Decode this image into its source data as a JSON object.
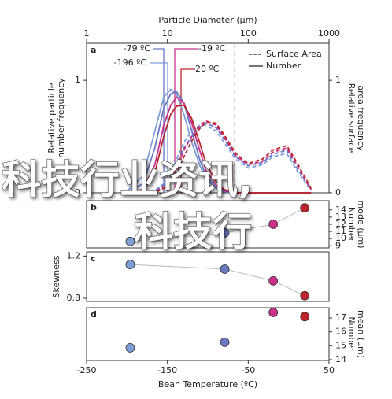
{
  "chart_data": [
    {
      "type": "line",
      "panel_label": "a",
      "xscale": "log",
      "xlabel": "Particle Diameter (μm)",
      "ylabel": [
        "Relative particle",
        "number frequency"
      ],
      "y2label": [
        "Relative surface",
        "area frequency"
      ],
      "x": [
        3,
        5,
        7,
        9,
        11,
        13,
        16,
        20,
        25,
        30,
        40,
        50,
        70,
        100,
        150,
        200,
        300,
        400,
        600
      ],
      "xlim": [
        1,
        1000
      ],
      "xticks": [
        1,
        10,
        100,
        1000
      ],
      "ylim": [
        0,
        1.33
      ],
      "yticks": [
        0,
        1
      ],
      "y2lim": [
        0,
        1.33
      ],
      "y2ticks": [
        0,
        1
      ],
      "reference_line": {
        "value": 68,
        "color": "#e8a0b8"
      },
      "legend": [
        {
          "label": "Surface Area",
          "dashed": true
        },
        {
          "label": "Number",
          "dashed": false
        }
      ],
      "annotations": [
        {
          "text": "-79 ºC",
          "color": "#6a78c4"
        },
        {
          "text": "-196 ºC",
          "color": "#7f9fd8"
        },
        {
          "text": "-19 ºC",
          "color": "#c8308a"
        },
        {
          "text": "20 ºC",
          "color": "#b8262b"
        }
      ],
      "series": [
        {
          "color": "#7f9fd8",
          "dashed": false,
          "values": [
            0,
            0.15,
            0.55,
            0.85,
            0.92,
            0.88,
            0.7,
            0.45,
            0.25,
            0.12,
            0.04,
            0.01,
            0,
            0,
            0,
            0,
            0,
            0,
            0
          ]
        },
        {
          "color": "#6a78c4",
          "dashed": false,
          "values": [
            0,
            0.08,
            0.4,
            0.75,
            0.88,
            0.9,
            0.8,
            0.55,
            0.3,
            0.15,
            0.05,
            0.01,
            0,
            0,
            0,
            0,
            0,
            0,
            0
          ]
        },
        {
          "color": "#c8308a",
          "dashed": false,
          "values": [
            0,
            0.03,
            0.25,
            0.6,
            0.78,
            0.85,
            0.8,
            0.62,
            0.38,
            0.2,
            0.07,
            0.02,
            0,
            0,
            0,
            0,
            0,
            0,
            0
          ]
        },
        {
          "color": "#b8262b",
          "dashed": false,
          "values": [
            0,
            0.02,
            0.18,
            0.5,
            0.7,
            0.77,
            0.78,
            0.66,
            0.45,
            0.26,
            0.1,
            0.03,
            0,
            0,
            0,
            0,
            0,
            0,
            0
          ]
        },
        {
          "color": "#7f9fd8",
          "dashed": true,
          "values": [
            0,
            0,
            0.02,
            0.08,
            0.18,
            0.3,
            0.45,
            0.55,
            0.6,
            0.6,
            0.55,
            0.45,
            0.3,
            0.22,
            0.25,
            0.32,
            0.35,
            0.2,
            0.02
          ]
        },
        {
          "color": "#6a78c4",
          "dashed": true,
          "values": [
            0,
            0,
            0.02,
            0.07,
            0.15,
            0.26,
            0.4,
            0.5,
            0.58,
            0.62,
            0.58,
            0.48,
            0.32,
            0.24,
            0.27,
            0.34,
            0.38,
            0.22,
            0.03
          ]
        },
        {
          "color": "#c8308a",
          "dashed": true,
          "values": [
            0,
            0,
            0.01,
            0.05,
            0.12,
            0.22,
            0.38,
            0.5,
            0.6,
            0.64,
            0.6,
            0.5,
            0.33,
            0.25,
            0.28,
            0.36,
            0.4,
            0.25,
            0.03
          ]
        },
        {
          "color": "#b8262b",
          "dashed": true,
          "values": [
            0,
            0,
            0,
            0.04,
            0.1,
            0.18,
            0.32,
            0.46,
            0.57,
            0.63,
            0.62,
            0.52,
            0.35,
            0.26,
            0.3,
            0.38,
            0.42,
            0.27,
            0.04
          ]
        }
      ]
    },
    {
      "type": "scatter",
      "panel_label": "b",
      "y2label": [
        "Number",
        "mode (μm)"
      ],
      "yaxis_side": "right",
      "connect": true,
      "x": [
        -196,
        -79,
        -19,
        20
      ],
      "xlim": [
        -250,
        50
      ],
      "ylim": [
        8.7,
        15.3
      ],
      "yticks": [
        9,
        10,
        11,
        12,
        13,
        14
      ],
      "colors": [
        "#7f9fd8",
        "#6a78c4",
        "#c8308a",
        "#b8262b"
      ],
      "values": [
        9.6,
        10.8,
        12.0,
        14.3
      ]
    },
    {
      "type": "scatter",
      "panel_label": "c",
      "ylabel": [
        "Skewness"
      ],
      "yaxis_side": "left",
      "connect": true,
      "x": [
        -196,
        -79,
        -19,
        20
      ],
      "xlim": [
        -250,
        50
      ],
      "ylim": [
        0.77,
        1.24
      ],
      "yticks": [
        0.8,
        1.2
      ],
      "colors": [
        "#7f9fd8",
        "#6a78c4",
        "#c8308a",
        "#b8262b"
      ],
      "values": [
        1.12,
        1.076,
        0.965,
        0.824
      ]
    },
    {
      "type": "scatter",
      "panel_label": "d",
      "y2label": [
        "Number",
        "mean (μm)"
      ],
      "yaxis_side": "right",
      "connect": false,
      "xlabel": "Bean Temperature (ºC)",
      "x": [
        -196,
        -79,
        -19,
        20
      ],
      "xlim": [
        -250,
        50
      ],
      "xticks": [
        -250,
        -150,
        -50,
        50
      ],
      "ylim": [
        13.94,
        17.74
      ],
      "yticks": [
        14,
        15,
        16,
        17
      ],
      "colors": [
        "#7f9fd8",
        "#6a78c4",
        "#c8308a",
        "#b8262b"
      ],
      "values": [
        14.85,
        15.25,
        17.4,
        17.1
      ]
    }
  ],
  "watermark": [
    "科技行业资讯,",
    "科技行"
  ]
}
